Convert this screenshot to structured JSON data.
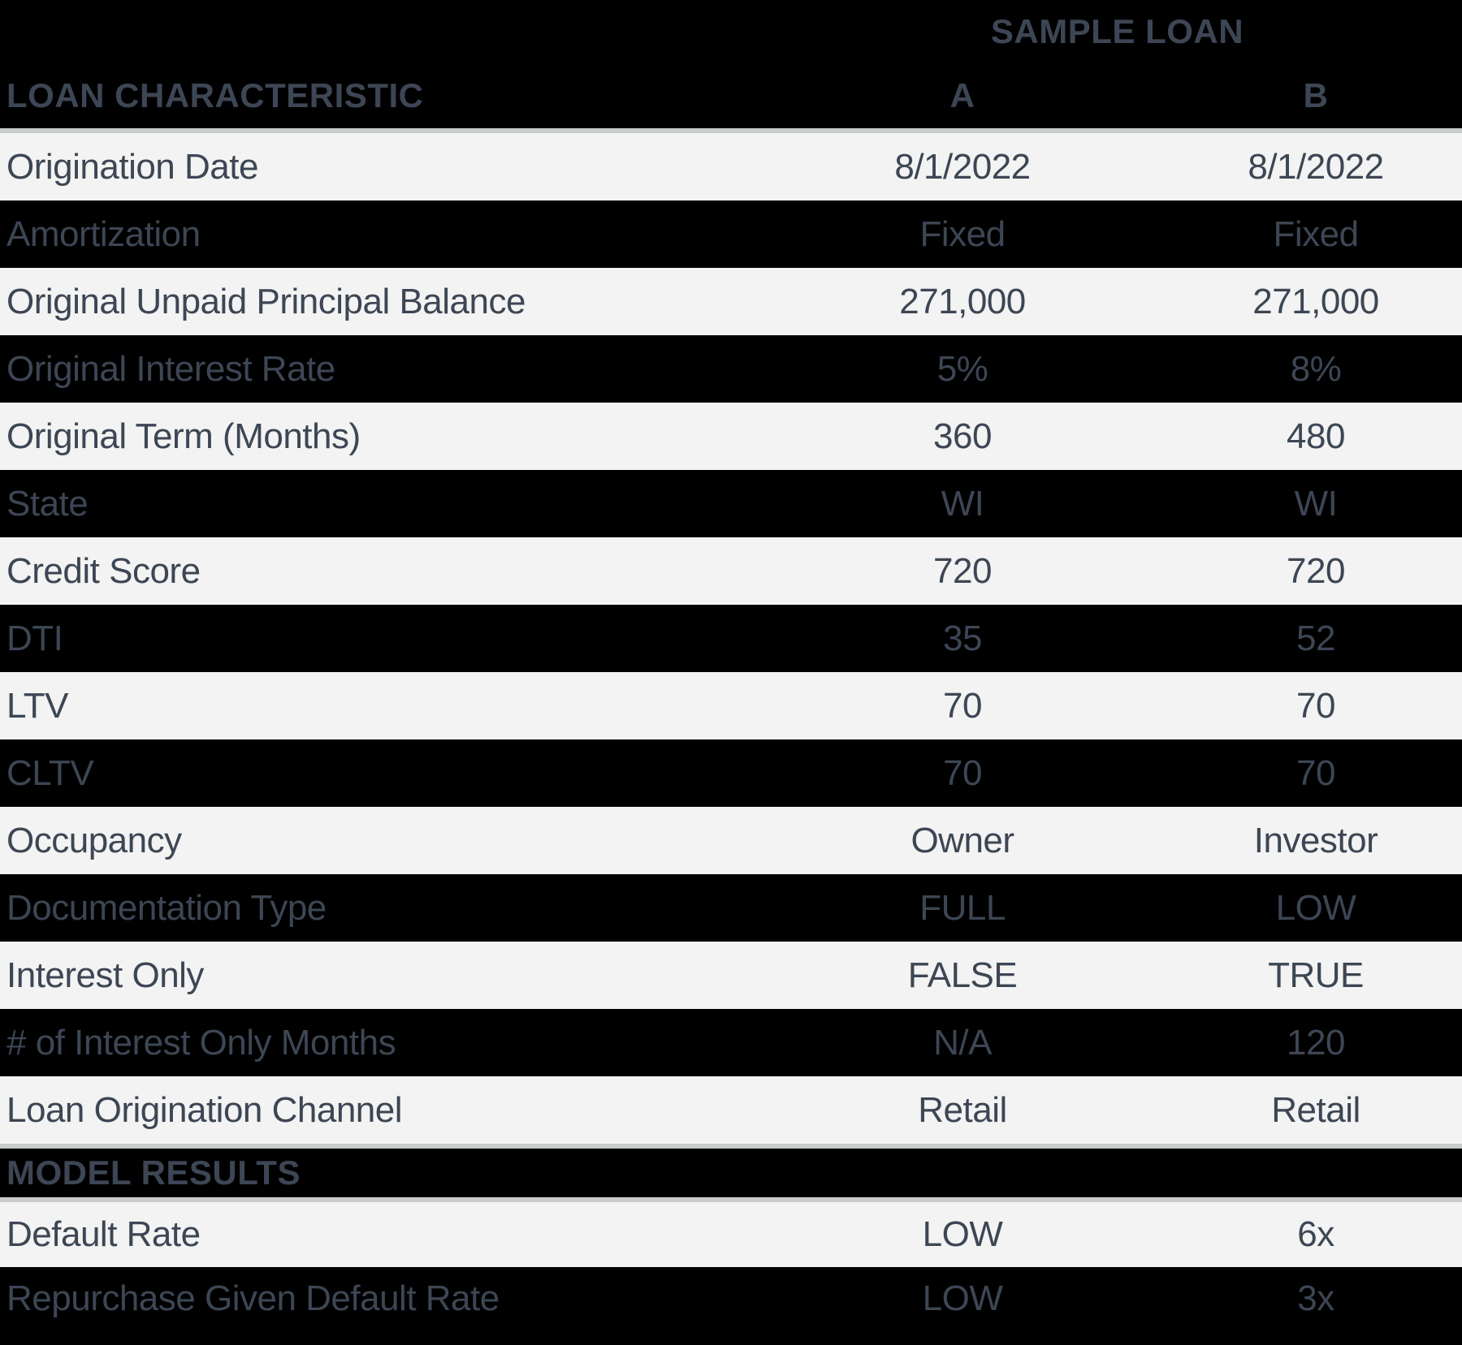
{
  "header": {
    "group_label": "SAMPLE LOAN",
    "row_header": "LOAN CHARACTERISTIC",
    "col_a": "A",
    "col_b": "B"
  },
  "characteristics": [
    {
      "label": "Origination Date",
      "a": "8/1/2022",
      "b": "8/1/2022"
    },
    {
      "label": "Amortization",
      "a": "Fixed",
      "b": "Fixed"
    },
    {
      "label": "Original Unpaid Principal Balance",
      "a": "271,000",
      "b": "271,000"
    },
    {
      "label": "Original Interest Rate",
      "a": "5%",
      "b": "8%"
    },
    {
      "label": "Original Term (Months)",
      "a": "360",
      "b": "480"
    },
    {
      "label": "State",
      "a": "WI",
      "b": "WI"
    },
    {
      "label": "Credit Score",
      "a": "720",
      "b": "720"
    },
    {
      "label": "DTI",
      "a": "35",
      "b": "52"
    },
    {
      "label": "LTV",
      "a": "70",
      "b": "70"
    },
    {
      "label": "CLTV",
      "a": "70",
      "b": "70"
    },
    {
      "label": "Occupancy",
      "a": "Owner",
      "b": "Investor"
    },
    {
      "label": "Documentation Type",
      "a": "FULL",
      "b": "LOW"
    },
    {
      "label": "Interest Only",
      "a": "FALSE",
      "b": "TRUE"
    },
    {
      "label": "# of Interest Only Months",
      "a": "N/A",
      "b": "120"
    },
    {
      "label": "Loan Origination Channel",
      "a": "Retail",
      "b": "Retail"
    }
  ],
  "model_results": {
    "section_label": "MODEL RESULTS",
    "rows": [
      {
        "label": "Default Rate",
        "a": "LOW",
        "b": "6x"
      },
      {
        "label": "Repurchase Given Default Rate",
        "a": "LOW",
        "b": "3x"
      }
    ]
  },
  "colors": {
    "background": "#000000",
    "light_row": "#f2f3f2",
    "text": "#3d4654",
    "divider": "#c8cccb"
  },
  "chart_data": {
    "type": "table",
    "title": "SAMPLE LOAN",
    "columns": [
      "LOAN CHARACTERISTIC",
      "A",
      "B"
    ],
    "rows": [
      [
        "Origination Date",
        "8/1/2022",
        "8/1/2022"
      ],
      [
        "Amortization",
        "Fixed",
        "Fixed"
      ],
      [
        "Original Unpaid Principal Balance",
        "271,000",
        "271,000"
      ],
      [
        "Original Interest Rate",
        "5%",
        "8%"
      ],
      [
        "Original Term (Months)",
        "360",
        "480"
      ],
      [
        "State",
        "WI",
        "WI"
      ],
      [
        "Credit Score",
        "720",
        "720"
      ],
      [
        "DTI",
        "35",
        "52"
      ],
      [
        "LTV",
        "70",
        "70"
      ],
      [
        "CLTV",
        "70",
        "70"
      ],
      [
        "Occupancy",
        "Owner",
        "Investor"
      ],
      [
        "Documentation Type",
        "FULL",
        "LOW"
      ],
      [
        "Interest Only",
        "FALSE",
        "TRUE"
      ],
      [
        "# of Interest Only Months",
        "N/A",
        "120"
      ],
      [
        "Loan Origination Channel",
        "Retail",
        "Retail"
      ],
      [
        "MODEL RESULTS",
        "",
        ""
      ],
      [
        "Default Rate",
        "LOW",
        "6x"
      ],
      [
        "Repurchase Given Default Rate",
        "LOW",
        "3x"
      ]
    ],
    "layout": "alternating light-gray and black rows; gray divider lines under header, above and below MODEL RESULTS section header"
  }
}
